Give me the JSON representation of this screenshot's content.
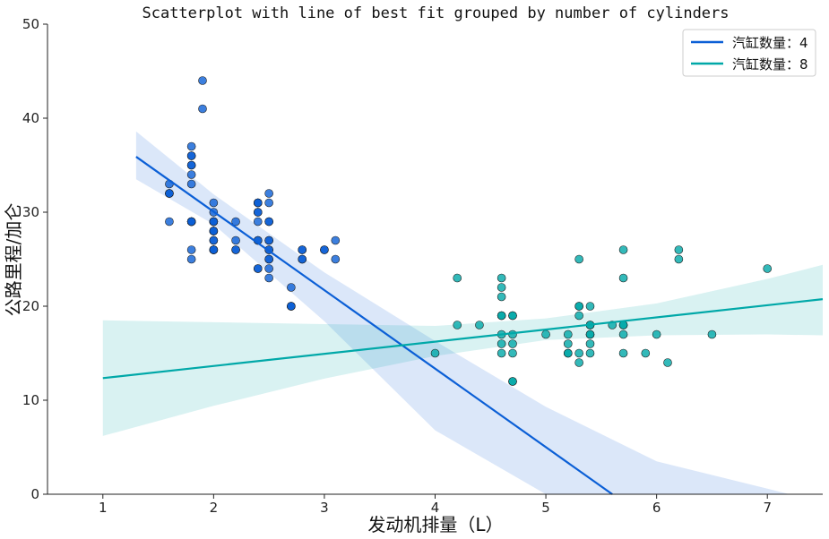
{
  "chart_data": {
    "type": "scatter",
    "title": "Scatterplot with line of best fit grouped by number of cylinders",
    "xlabel": "发动机排量（L）",
    "ylabel": "公路里程/加仑",
    "xlim": [
      0.5,
      7.5
    ],
    "ylim": [
      0,
      50
    ],
    "x_ticks": [
      "1",
      "2",
      "3",
      "4",
      "5",
      "6",
      "7"
    ],
    "y_ticks": [
      "0",
      "10",
      "20",
      "30",
      "40",
      "50"
    ],
    "legend_position": "top-right",
    "series": [
      {
        "name": "汽缸数量：4",
        "color": "#0b5fd6",
        "fit_line": {
          "x": [
            1.3,
            5.6
          ],
          "y": [
            35.9,
            0.0
          ]
        },
        "ci_band": {
          "x": [
            1.3,
            2.0,
            3.0,
            4.0,
            5.0,
            6.0,
            7.0,
            7.2
          ],
          "upper": [
            38.6,
            31.9,
            23.6,
            16.3,
            9.3,
            3.5,
            0.6,
            0.0
          ],
          "lower": [
            33.5,
            28.7,
            18.4,
            6.8,
            0.0,
            0.0,
            0.0,
            0.0
          ]
        },
        "points": [
          [
            1.8,
            29
          ],
          [
            1.8,
            29
          ],
          [
            2.0,
            31
          ],
          [
            2.0,
            30
          ],
          [
            2.8,
            26
          ],
          [
            2.8,
            26
          ],
          [
            3.1,
            27
          ],
          [
            1.8,
            26
          ],
          [
            1.8,
            25
          ],
          [
            2.0,
            28
          ],
          [
            2.0,
            27
          ],
          [
            2.8,
            25
          ],
          [
            2.8,
            25
          ],
          [
            3.1,
            25
          ],
          [
            2.2,
            27
          ],
          [
            2.2,
            29
          ],
          [
            2.4,
            31
          ],
          [
            2.4,
            31
          ],
          [
            3.0,
            26
          ],
          [
            3.0,
            26
          ],
          [
            1.8,
            33
          ],
          [
            1.8,
            35
          ],
          [
            1.8,
            37
          ],
          [
            1.8,
            35
          ],
          [
            1.8,
            29
          ],
          [
            1.6,
            33
          ],
          [
            1.6,
            32
          ],
          [
            1.6,
            32
          ],
          [
            1.6,
            29
          ],
          [
            1.6,
            32
          ],
          [
            1.9,
            44
          ],
          [
            2.0,
            29
          ],
          [
            2.0,
            26
          ],
          [
            2.5,
            29
          ],
          [
            2.5,
            29
          ],
          [
            2.4,
            24
          ],
          [
            2.4,
            24
          ],
          [
            2.4,
            30
          ],
          [
            2.4,
            27
          ],
          [
            2.5,
            32
          ],
          [
            2.5,
            31
          ],
          [
            2.2,
            26
          ],
          [
            2.2,
            26
          ],
          [
            2.5,
            27
          ],
          [
            2.5,
            27
          ],
          [
            1.8,
            36
          ],
          [
            1.8,
            36
          ],
          [
            1.8,
            29
          ],
          [
            1.8,
            29
          ],
          [
            2.0,
            26
          ],
          [
            2.0,
            26
          ],
          [
            2.4,
            29
          ],
          [
            2.4,
            31
          ],
          [
            2.4,
            27
          ],
          [
            2.4,
            30
          ],
          [
            2.7,
            22
          ],
          [
            2.7,
            20
          ],
          [
            2.7,
            20
          ],
          [
            2.7,
            20
          ],
          [
            2.5,
            23
          ],
          [
            2.5,
            26
          ],
          [
            2.5,
            25
          ],
          [
            2.5,
            24
          ],
          [
            1.9,
            41
          ],
          [
            1.8,
            34
          ],
          [
            2.0,
            28
          ],
          [
            2.0,
            28
          ],
          [
            2.0,
            29
          ],
          [
            2.0,
            29
          ],
          [
            2.0,
            26
          ],
          [
            2.0,
            26
          ],
          [
            2.0,
            29
          ],
          [
            2.0,
            28
          ],
          [
            2.0,
            27
          ],
          [
            2.5,
            26
          ],
          [
            2.5,
            25
          ]
        ]
      },
      {
        "name": "汽缸数量：8",
        "color": "#00a8a8",
        "fit_line": {
          "x": [
            1.0,
            7.5
          ],
          "y": [
            12.35,
            20.75
          ]
        },
        "ci_band": {
          "x": [
            1.0,
            2.0,
            3.0,
            4.0,
            5.0,
            6.0,
            7.0,
            7.5
          ],
          "upper": [
            18.5,
            18.3,
            18.1,
            17.9,
            18.7,
            20.3,
            22.9,
            24.4
          ],
          "lower": [
            6.2,
            9.4,
            12.3,
            14.7,
            16.4,
            16.9,
            17.0,
            16.9
          ]
        },
        "points": [
          [
            5.7,
            26
          ],
          [
            5.7,
            23
          ],
          [
            6.2,
            26
          ],
          [
            6.2,
            25
          ],
          [
            7.0,
            24
          ],
          [
            5.3,
            20
          ],
          [
            5.3,
            19
          ],
          [
            5.7,
            18
          ],
          [
            6.5,
            17
          ],
          [
            6.0,
            17
          ],
          [
            4.2,
            23
          ],
          [
            4.6,
            23
          ],
          [
            4.6,
            22
          ],
          [
            4.6,
            21
          ],
          [
            4.6,
            19
          ],
          [
            4.6,
            17
          ],
          [
            4.6,
            16
          ],
          [
            4.7,
            19
          ],
          [
            4.7,
            19
          ],
          [
            4.7,
            17
          ],
          [
            4.7,
            16
          ],
          [
            4.7,
            15
          ],
          [
            4.7,
            12
          ],
          [
            4.2,
            18
          ],
          [
            4.4,
            18
          ],
          [
            4.0,
            15
          ],
          [
            4.6,
            15
          ],
          [
            5.0,
            17
          ],
          [
            5.2,
            17
          ],
          [
            5.2,
            16
          ],
          [
            5.2,
            15
          ],
          [
            5.2,
            15
          ],
          [
            5.3,
            25
          ],
          [
            5.3,
            20
          ],
          [
            5.3,
            15
          ],
          [
            5.3,
            14
          ],
          [
            5.4,
            20
          ],
          [
            5.4,
            18
          ],
          [
            5.4,
            17
          ],
          [
            5.4,
            16
          ],
          [
            5.4,
            15
          ],
          [
            5.4,
            17
          ],
          [
            5.6,
            18
          ],
          [
            5.7,
            17
          ],
          [
            5.7,
            15
          ],
          [
            5.9,
            15
          ],
          [
            6.1,
            14
          ],
          [
            4.6,
            19
          ],
          [
            4.7,
            12
          ],
          [
            5.4,
            18
          ],
          [
            5.7,
            18
          ]
        ]
      }
    ]
  }
}
